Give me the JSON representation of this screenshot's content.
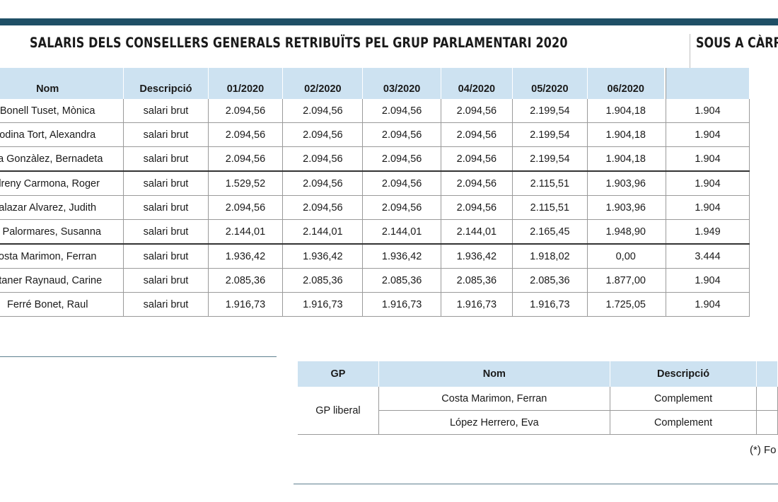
{
  "title": "SALARIS DELS CONSELLERS GENERALS RETRIBUÏTS PEL GRUP PARLAMENTARI 2020",
  "side_title": "SOUS A CÀRR",
  "salary_table": {
    "headers": [
      "Nom",
      "Descripció",
      "01/2020",
      "02/2020",
      "03/2020",
      "04/2020",
      "05/2020",
      "06/2020"
    ],
    "rows": [
      {
        "name": "Bonell Tuset, Mònica",
        "desc": "salari brut",
        "values": [
          "2.094,56",
          "2.094,56",
          "2.094,56",
          "2.094,56",
          "2.199,54",
          "1.904,18"
        ],
        "extra": "1.904"
      },
      {
        "name": "odina Tort, Alexandra",
        "desc": "salari brut",
        "values": [
          "2.094,56",
          "2.094,56",
          "2.094,56",
          "2.094,56",
          "2.199,54",
          "1.904,18"
        ],
        "extra": "1.904"
      },
      {
        "name": "na Gonzàlez, Bernadeta",
        "desc": "salari brut",
        "values": [
          "2.094,56",
          "2.094,56",
          "2.094,56",
          "2.094,56",
          "2.199,54",
          "1.904,18"
        ],
        "extra": "1.904"
      },
      {
        "name": "dreny Carmona, Roger",
        "desc": "salari brut",
        "values": [
          "1.529,52",
          "2.094,56",
          "2.094,56",
          "2.094,56",
          "2.115,51",
          "1.903,96"
        ],
        "extra": "1.904"
      },
      {
        "name": "alazar Alvarez, Judith",
        "desc": "salari brut",
        "values": [
          "2.094,56",
          "2.094,56",
          "2.094,56",
          "2.094,56",
          "2.115,51",
          "1.903,96"
        ],
        "extra": "1.904"
      },
      {
        "name": "a Palormares, Susanna",
        "desc": "salari brut",
        "values": [
          "2.144,01",
          "2.144,01",
          "2.144,01",
          "2.144,01",
          "2.165,45",
          "1.948,90"
        ],
        "extra": "1.949"
      },
      {
        "name": "osta Marimon, Ferran",
        "desc": "salari brut",
        "values": [
          "1.936,42",
          "1.936,42",
          "1.936,42",
          "1.936,42",
          "1.918,02",
          "0,00"
        ],
        "extra": "3.444"
      },
      {
        "name": "ntaner Raynaud, Carine",
        "desc": "salari brut",
        "values": [
          "2.085,36",
          "2.085,36",
          "2.085,36",
          "2.085,36",
          "2.085,36",
          "1.877,00"
        ],
        "extra": "1.904"
      },
      {
        "name": "Ferré Bonet, Raul",
        "desc": "salari brut",
        "values": [
          "1.916,73",
          "1.916,73",
          "1.916,73",
          "1.916,73",
          "1.916,73",
          "1.725,05"
        ],
        "extra": "1.904"
      }
    ]
  },
  "gp_table": {
    "headers": [
      "GP",
      "Nom",
      "Descripció"
    ],
    "group": "GP liberal",
    "rows": [
      {
        "name": "Costa Marimon, Ferran",
        "desc": "Complement"
      },
      {
        "name": "López Herrero, Eva",
        "desc": "Complement"
      }
    ]
  },
  "footnote": "(*) Fo",
  "colors": {
    "header_bg": "#cde2f1",
    "top_bar": "#1f4f66"
  }
}
